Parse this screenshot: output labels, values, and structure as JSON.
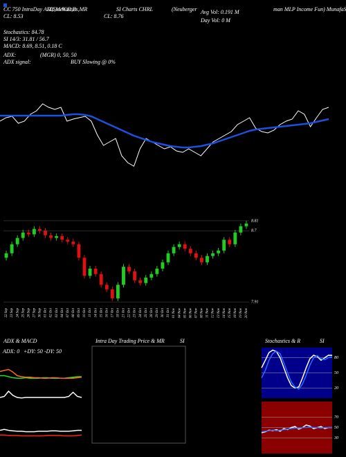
{
  "chart_data": [
    {
      "type": "line",
      "annotations": [
        "CC 750 IntraDay ADX,MACD,B",
        "SI,Stochastics,MR",
        "SI Charts CHRL",
        "(Neuberger",
        "man MLP Income Fun) MunafaSutra.com",
        "CL: 8.53",
        "CL: 8.76",
        "Avg Vol: 0.191 M",
        "Day Vol: 0 M",
        "Stochastics: 84.78",
        "SI 14/3: 31.81 / 56.7",
        "MACD: 8.69, 8.51, 0.18 C",
        "ADX:",
        "(MGR) 0, 50, 50",
        "ADX signal:",
        "BUY Slowing @ 0%"
      ],
      "ylim": [
        0,
        200
      ],
      "series": [
        {
          "color": "#ffffff",
          "values": [
            125,
            130,
            132,
            122,
            125,
            135,
            140,
            150,
            145,
            142,
            145,
            125,
            128,
            130,
            132,
            125,
            105,
            90,
            95,
            100,
            75,
            65,
            60,
            85,
            100,
            95,
            90,
            85,
            88,
            82,
            80,
            85,
            80,
            75,
            85,
            95,
            100,
            105,
            110,
            120,
            125,
            130,
            115,
            110,
            108,
            112,
            120,
            125,
            128,
            140,
            135,
            117,
            130,
            142,
            145
          ]
        },
        {
          "color": "#1f4fe0",
          "values": [
            133,
            133,
            133,
            133,
            133,
            133,
            133,
            133,
            133,
            133,
            133,
            134,
            135,
            135,
            134,
            132,
            128,
            124,
            120,
            116,
            112,
            108,
            104,
            101,
            98,
            95,
            93,
            91,
            89,
            88,
            87,
            87,
            88,
            89,
            91,
            93,
            96,
            99,
            102,
            105,
            108,
            111,
            113,
            114,
            115,
            116,
            117,
            118,
            119,
            120,
            121,
            122,
            124,
            126,
            128
          ]
        }
      ]
    },
    {
      "type": "candlestick",
      "categories": [
        "22 Sep",
        "23 Sep",
        "24 Sep",
        "25 Sep",
        "26 Sep",
        "27 Sep",
        "30 Sep",
        "01 Oct",
        "02 Oct",
        "03 Oct",
        "04 Oct",
        "07 Oct",
        "08 Oct",
        "09 Oct",
        "10 Oct",
        "11 Oct",
        "14 Oct",
        "15 Oct",
        "16 Oct",
        "17 Oct",
        "18 Oct",
        "21 Oct",
        "22 Oct",
        "23 Oct",
        "24 Oct",
        "25 Oct",
        "28 Oct",
        "29 Oct",
        "30 Oct",
        "31 Oct",
        "01 Nov",
        "04 Nov",
        "05 Nov",
        "06 Nov",
        "07 Nov",
        "08 Nov",
        "11 Nov",
        "12 Nov",
        "13 Nov",
        "14 Nov",
        "15 Nov",
        "18 Nov",
        "19 Nov",
        "20 Nov"
      ],
      "open": [
        8.4,
        8.45,
        8.55,
        8.62,
        8.68,
        8.66,
        8.72,
        8.7,
        8.65,
        8.62,
        8.64,
        8.6,
        8.58,
        8.55,
        8.4,
        8.2,
        8.28,
        8.22,
        8.1,
        8.05,
        7.95,
        8.1,
        8.3,
        8.25,
        8.15,
        8.12,
        8.18,
        8.22,
        8.28,
        8.35,
        8.45,
        8.52,
        8.55,
        8.5,
        8.45,
        8.4,
        8.35,
        8.42,
        8.45,
        8.48,
        8.6,
        8.55,
        8.68,
        8.75
      ],
      "high": [
        8.48,
        8.58,
        8.65,
        8.71,
        8.71,
        8.75,
        8.75,
        8.73,
        8.68,
        8.67,
        8.67,
        8.63,
        8.61,
        8.58,
        8.43,
        8.31,
        8.31,
        8.25,
        8.13,
        8.08,
        8.13,
        8.33,
        8.33,
        8.28,
        8.18,
        8.21,
        8.25,
        8.31,
        8.38,
        8.48,
        8.55,
        8.58,
        8.58,
        8.53,
        8.48,
        8.43,
        8.45,
        8.48,
        8.51,
        8.63,
        8.63,
        8.71,
        8.78,
        8.81
      ],
      "low": [
        8.37,
        8.42,
        8.52,
        8.59,
        8.63,
        8.63,
        8.67,
        8.62,
        8.59,
        8.59,
        8.57,
        8.55,
        8.52,
        8.37,
        8.17,
        8.17,
        8.19,
        8.07,
        8.02,
        7.92,
        7.92,
        8.07,
        8.22,
        8.12,
        8.09,
        8.09,
        8.15,
        8.19,
        8.25,
        8.32,
        8.42,
        8.49,
        8.47,
        8.42,
        8.37,
        8.32,
        8.32,
        8.39,
        8.42,
        8.45,
        8.52,
        8.52,
        8.65,
        8.72
      ],
      "close": [
        8.45,
        8.55,
        8.62,
        8.68,
        8.66,
        8.72,
        8.7,
        8.65,
        8.62,
        8.64,
        8.6,
        8.58,
        8.55,
        8.4,
        8.2,
        8.28,
        8.22,
        8.1,
        8.05,
        7.95,
        8.1,
        8.3,
        8.25,
        8.15,
        8.12,
        8.18,
        8.22,
        8.28,
        8.35,
        8.45,
        8.52,
        8.55,
        8.5,
        8.45,
        8.4,
        8.35,
        8.42,
        8.45,
        8.48,
        8.6,
        8.55,
        8.68,
        8.75,
        8.78
      ],
      "up_color": "#22cc22",
      "down_color": "#dd1111",
      "ylim": [
        7.88,
        8.84
      ],
      "yticks": [
        8.81,
        8.7,
        7.91
      ]
    },
    {
      "type": "line",
      "title": "ADX & MACD",
      "annotations": [
        "ADX: 0",
        "+DY: 50",
        "-DY: 50"
      ],
      "ylim": [
        0,
        100
      ],
      "series": [
        {
          "color": "#22dd22",
          "values": [
            50,
            50,
            48,
            46,
            45,
            45,
            46,
            45,
            45,
            45,
            46,
            46,
            45,
            45,
            45,
            45,
            46,
            47,
            48,
            48
          ]
        },
        {
          "color": "#ff6a1a",
          "values": [
            58,
            60,
            62,
            57,
            50,
            48,
            47,
            47,
            46,
            46,
            45,
            45,
            46,
            46,
            45,
            45,
            45,
            45,
            46,
            47
          ]
        },
        {
          "color": "#ffffff",
          "values": [
            8,
            10,
            20,
            12,
            8,
            7,
            8,
            8,
            8,
            8,
            8,
            8,
            8,
            8,
            8,
            8,
            10,
            18,
            10,
            8
          ]
        }
      ]
    },
    {
      "type": "line",
      "ylim": [
        0,
        100
      ],
      "series": [
        {
          "color": "#ffffff",
          "values": [
            50,
            52,
            50,
            49,
            48,
            48,
            47,
            47,
            47,
            48,
            48,
            48,
            49,
            49,
            48,
            48,
            48,
            49,
            50,
            50
          ]
        },
        {
          "color": "#ff2222",
          "values": [
            40,
            40,
            39,
            39,
            39,
            38,
            38,
            38,
            38,
            38,
            38,
            39,
            39,
            39,
            39,
            38,
            38,
            38,
            39,
            40
          ]
        }
      ]
    },
    {
      "type": "panel",
      "title": "Intra Day Trading Price & MR",
      "annotations": [
        "SI"
      ]
    },
    {
      "type": "line",
      "title": "Stochastics & R",
      "annotations": [
        "SI"
      ],
      "background": "#00008b",
      "ylim": [
        0,
        100
      ],
      "yticks": [
        80,
        50,
        20
      ],
      "series": [
        {
          "color": "#ffffff",
          "values": [
            60,
            75,
            90,
            95,
            92,
            80,
            60,
            40,
            25,
            20,
            22,
            40,
            60,
            78,
            85,
            82,
            75,
            80,
            85,
            84.78
          ]
        },
        {
          "color": "#2a6bff",
          "values": [
            40,
            55,
            75,
            88,
            93,
            88,
            70,
            50,
            32,
            22,
            18,
            28,
            45,
            65,
            80,
            84,
            78,
            76,
            80,
            82
          ]
        }
      ]
    },
    {
      "type": "line",
      "background": "#8b0000",
      "ylim": [
        0,
        100
      ],
      "yticks": [
        70,
        50,
        30
      ],
      "series": [
        {
          "color": "#ffffff",
          "values": [
            40,
            42,
            45,
            44,
            46,
            43,
            48,
            46,
            50,
            52,
            47,
            50,
            55,
            53,
            48,
            50,
            52,
            48,
            50,
            50
          ]
        },
        {
          "color": "#2a6bff",
          "values": [
            42,
            43,
            44,
            45,
            44,
            45,
            46,
            47,
            48,
            49,
            49,
            50,
            50,
            51,
            50,
            50,
            49,
            50,
            50,
            50
          ]
        }
      ]
    }
  ]
}
